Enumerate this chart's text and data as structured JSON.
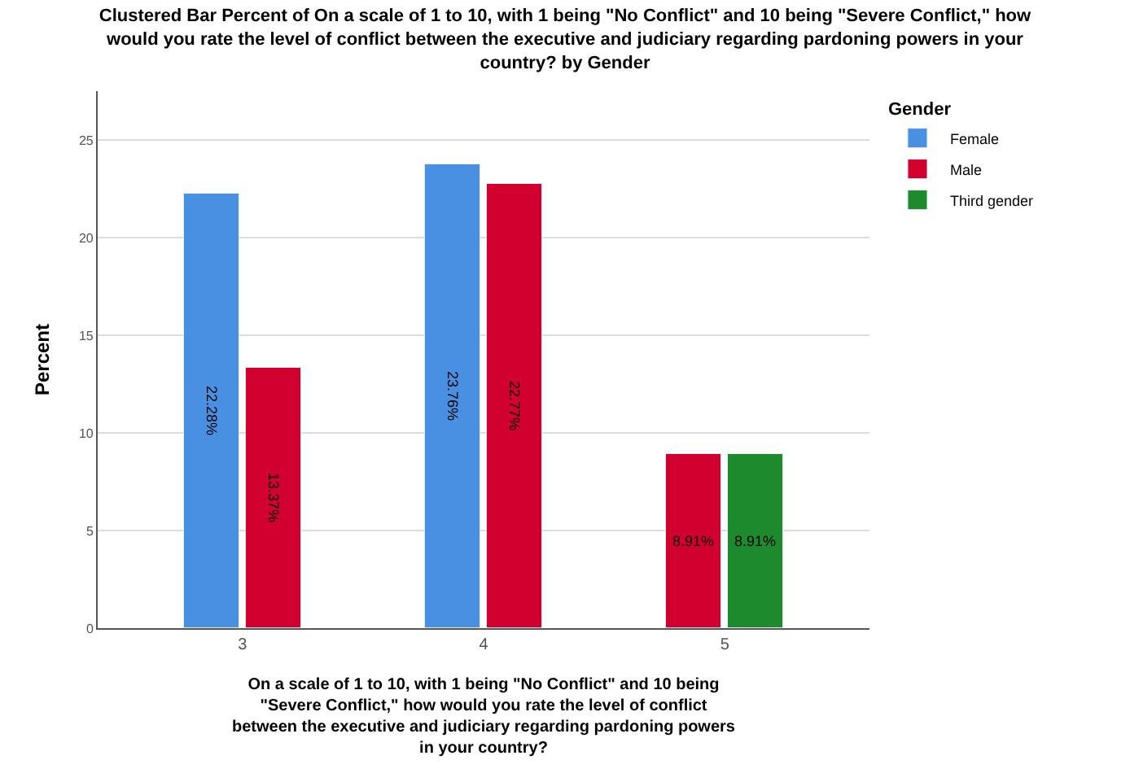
{
  "chart_data": {
    "type": "bar",
    "title": "Clustered Bar Percent of On a scale of 1 to 10, with 1 being \"No Conflict\" and 10 being \"Severe Conflict,\" how would you rate the level of conflict between the executive and judiciary regarding pardoning powers in your country? by Gender",
    "xlabel": "On a scale of 1 to 10, with 1 being \"No Conflict\" and 10 being \"Severe Conflict,\" how would you rate the level of conflict between the executive and judiciary regarding pardoning powers in your country?",
    "ylabel": "Percent",
    "legend_title": "Gender",
    "categories": [
      "3",
      "4",
      "5"
    ],
    "series": [
      {
        "name": "Female",
        "color": "#4a90e2",
        "values": [
          22.28,
          23.76,
          null
        ],
        "value_labels": [
          "22.28%",
          "23.76%",
          null
        ]
      },
      {
        "name": "Male",
        "color": "#d2002f",
        "values": [
          13.37,
          22.77,
          8.91
        ],
        "value_labels": [
          "13.37%",
          "22.77%",
          "8.91%"
        ]
      },
      {
        "name": "Third gender",
        "color": "#1e8a2e",
        "values": [
          null,
          null,
          8.91
        ],
        "value_labels": [
          null,
          null,
          "8.91%"
        ]
      }
    ],
    "ylim": [
      0,
      27.5
    ],
    "yticks": [
      0,
      5,
      10,
      15,
      20,
      25
    ],
    "grid": "y",
    "legend": "top right"
  }
}
